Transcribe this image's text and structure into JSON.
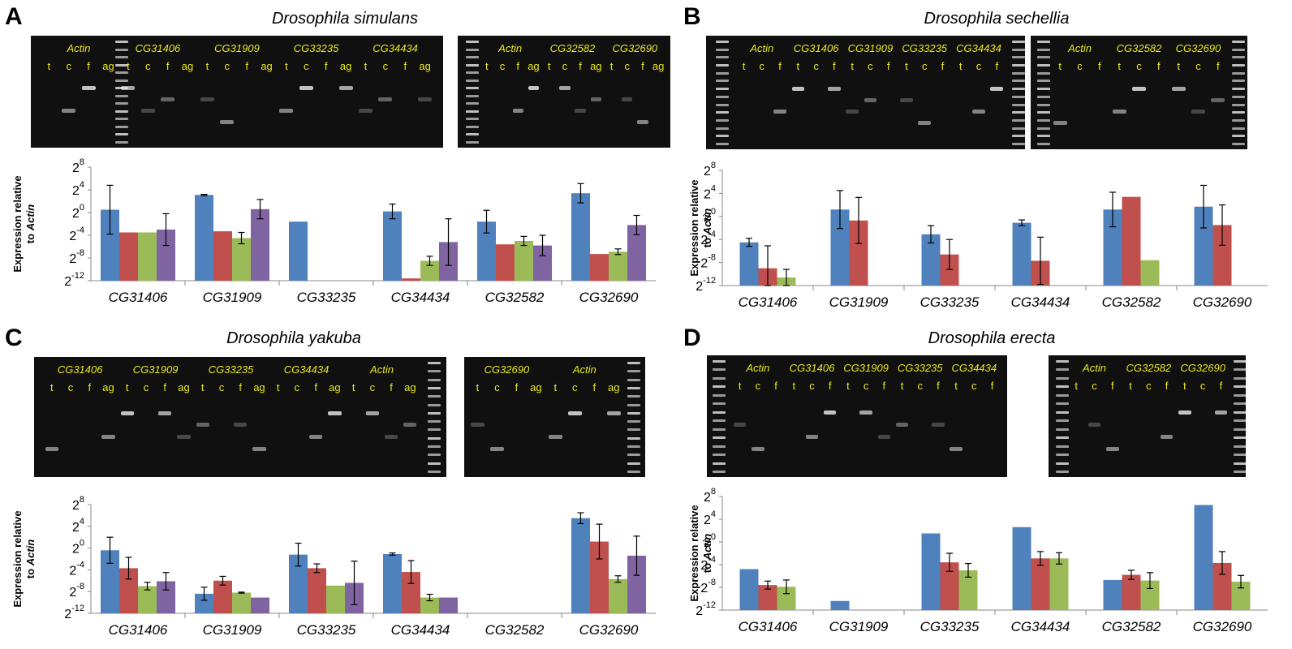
{
  "colors": {
    "t": "#4f81bd",
    "c": "#c0504d",
    "f": "#9bbb59",
    "ag": "#8064a2",
    "lane_label": "#e8e81a"
  },
  "panels": [
    {
      "letter": "A",
      "title": "Drosophila simulans",
      "gels": [
        {
          "groups": [
            {
              "label": "Actin",
              "lanes": [
                "t",
                "c",
                "f",
                "ag"
              ]
            },
            {
              "label": "CG31406",
              "lanes": [
                "t",
                "c",
                "f",
                "ag"
              ]
            },
            {
              "label": "CG31909",
              "lanes": [
                "t",
                "c",
                "f",
                "ag"
              ]
            },
            {
              "label": "CG33235",
              "lanes": [
                "t",
                "c",
                "f",
                "ag"
              ]
            },
            {
              "label": "CG34434",
              "lanes": [
                "t",
                "c",
                "f",
                "ag"
              ]
            }
          ]
        },
        {
          "groups": [
            {
              "label": "Actin",
              "lanes": [
                "t",
                "c",
                "f",
                "ag"
              ]
            },
            {
              "label": "CG32582",
              "lanes": [
                "t",
                "c",
                "f",
                "ag"
              ]
            },
            {
              "label": "CG32690",
              "lanes": [
                "t",
                "c",
                "f",
                "ag"
              ]
            }
          ]
        }
      ],
      "chart_data": {
        "type": "bar",
        "ylabel": [
          "Expression relative",
          "to Actin"
        ],
        "ylim_exp": [
          -12,
          8
        ],
        "ytick_exp": [
          -12,
          -8,
          -4,
          0,
          4,
          8
        ],
        "tick_base": "2",
        "categories": [
          "CG31406",
          "CG31909",
          "CG33235",
          "CG34434",
          "CG32582",
          "CG32690"
        ],
        "series": [
          {
            "key": "t",
            "values": [
              0.5,
              3.1,
              -1.6,
              0.2,
              -1.6,
              3.4
            ],
            "err": [
              4.3,
              0.1,
              null,
              1.3,
              2.0,
              1.7
            ]
          },
          {
            "key": "c",
            "values": [
              -3.5,
              -3.3,
              null,
              -11.6,
              -5.6,
              -7.3
            ],
            "err": [
              null,
              null,
              null,
              null,
              null,
              null
            ]
          },
          {
            "key": "f",
            "values": [
              -3.5,
              -4.5,
              null,
              -8.5,
              -5.0,
              -6.9
            ],
            "err": [
              null,
              1.0,
              null,
              0.8,
              0.8,
              0.5
            ]
          },
          {
            "key": "ag",
            "values": [
              -3.0,
              0.6,
              null,
              -5.2,
              -5.8,
              -2.2
            ],
            "err": [
              2.8,
              1.7,
              null,
              4.1,
              1.8,
              1.7
            ]
          }
        ]
      }
    },
    {
      "letter": "B",
      "title": "Drosophila sechellia",
      "gels": [
        {
          "groups": [
            {
              "label": "Actin",
              "lanes": [
                "t",
                "c",
                "f"
              ]
            },
            {
              "label": "CG31406",
              "lanes": [
                "t",
                "c",
                "f"
              ]
            },
            {
              "label": "CG31909",
              "lanes": [
                "t",
                "c",
                "f"
              ]
            },
            {
              "label": "CG33235",
              "lanes": [
                "t",
                "c",
                "f"
              ]
            },
            {
              "label": "CG34434",
              "lanes": [
                "t",
                "c",
                "f"
              ]
            }
          ]
        },
        {
          "groups": [
            {
              "label": "Actin",
              "lanes": [
                "t",
                "c",
                "f"
              ]
            },
            {
              "label": "CG32582",
              "lanes": [
                "t",
                "c",
                "f"
              ]
            },
            {
              "label": "CG32690",
              "lanes": [
                "t",
                "c",
                "f"
              ]
            }
          ]
        }
      ],
      "chart_data": {
        "type": "bar",
        "ylabel": [
          "Expression relative",
          "to Actin"
        ],
        "ylim_exp": [
          -12,
          8
        ],
        "ytick_exp": [
          -12,
          -8,
          -4,
          0,
          4,
          8
        ],
        "tick_base": "2",
        "categories": [
          "CG31406",
          "CG31909",
          "CG33235",
          "CG34434",
          "CG32582",
          "CG32690"
        ],
        "series": [
          {
            "key": "t",
            "values": [
              -4.5,
              1.2,
              -3.1,
              -1.1,
              1.2,
              1.7
            ],
            "err": [
              0.7,
              3.3,
              1.5,
              0.5,
              3.0,
              3.7
            ]
          },
          {
            "key": "c",
            "values": [
              -9.0,
              -0.7,
              -6.6,
              -7.7,
              3.4,
              -1.5
            ],
            "err": [
              3.9,
              4.0,
              2.6,
              4.1,
              null,
              3.5
            ]
          },
          {
            "key": "f",
            "values": [
              -10.6,
              null,
              null,
              null,
              -7.6,
              null
            ],
            "err": [
              1.4,
              null,
              null,
              null,
              null,
              null
            ]
          }
        ]
      }
    },
    {
      "letter": "C",
      "title": "Drosophila yakuba",
      "gels": [
        {
          "groups": [
            {
              "label": "CG31406",
              "lanes": [
                "t",
                "c",
                "f",
                "ag"
              ]
            },
            {
              "label": "CG31909",
              "lanes": [
                "t",
                "c",
                "f",
                "ag"
              ]
            },
            {
              "label": "CG33235",
              "lanes": [
                "t",
                "c",
                "f",
                "ag"
              ]
            },
            {
              "label": "CG34434",
              "lanes": [
                "t",
                "c",
                "f",
                "ag"
              ]
            },
            {
              "label": "Actin",
              "lanes": [
                "t",
                "c",
                "f",
                "ag"
              ]
            }
          ]
        },
        {
          "groups": [
            {
              "label": "CG32690",
              "lanes": [
                "t",
                "c",
                "f",
                "ag"
              ]
            },
            {
              "label": "Actin",
              "lanes": [
                "t",
                "c",
                "f",
                "ag"
              ]
            }
          ]
        }
      ],
      "chart_data": {
        "type": "bar",
        "ylabel": [
          "Expression relative",
          "to Actin"
        ],
        "ylim_exp": [
          -12,
          8
        ],
        "ytick_exp": [
          -12,
          -8,
          -4,
          0,
          4,
          8
        ],
        "tick_base": "2",
        "categories": [
          "CG31406",
          "CG31909",
          "CG33235",
          "CG34434",
          "CG32582",
          "CG32690"
        ],
        "series": [
          {
            "key": "t",
            "values": [
              -0.4,
              -8.4,
              -1.2,
              -1.1,
              null,
              5.5
            ],
            "err": [
              2.4,
              1.2,
              2.1,
              0.2,
              null,
              1.0
            ]
          },
          {
            "key": "c",
            "values": [
              -3.7,
              -6.0,
              -3.7,
              -4.4,
              null,
              1.2
            ],
            "err": [
              2.0,
              0.8,
              0.8,
              2.1,
              null,
              3.2
            ]
          },
          {
            "key": "f",
            "values": [
              -7.0,
              -8.2,
              -6.9,
              -9.1,
              null,
              -5.7
            ],
            "err": [
              0.7,
              0.1,
              null,
              0.6,
              null,
              0.6
            ]
          },
          {
            "key": "ag",
            "values": [
              -6.1,
              -9.1,
              -6.4,
              -9.1,
              null,
              -1.4
            ],
            "err": [
              1.6,
              null,
              4.0,
              null,
              null,
              3.6
            ]
          }
        ]
      }
    },
    {
      "letter": "D",
      "title": "Drosophila erecta",
      "gels": [
        {
          "groups": [
            {
              "label": "Actin",
              "lanes": [
                "t",
                "c",
                "f"
              ]
            },
            {
              "label": "CG31406",
              "lanes": [
                "t",
                "c",
                "f"
              ]
            },
            {
              "label": "CG31909",
              "lanes": [
                "t",
                "c",
                "f"
              ]
            },
            {
              "label": "CG33235",
              "lanes": [
                "t",
                "c",
                "f"
              ]
            },
            {
              "label": "CG34434",
              "lanes": [
                "t",
                "c",
                "f"
              ]
            }
          ]
        },
        {
          "groups": [
            {
              "label": "Actin",
              "lanes": [
                "t",
                "c",
                "f"
              ]
            },
            {
              "label": "CG32582",
              "lanes": [
                "t",
                "c",
                "f"
              ]
            },
            {
              "label": "CG32690",
              "lanes": [
                "t",
                "c",
                "f"
              ]
            }
          ]
        }
      ],
      "chart_data": {
        "type": "bar",
        "ylabel": [
          "Expression relative",
          "to Actin"
        ],
        "ylim_exp": [
          -12,
          8
        ],
        "ytick_exp": [
          -12,
          -8,
          -4,
          0,
          4,
          8
        ],
        "tick_base": "2",
        "categories": [
          "CG31406",
          "CG31909",
          "CG33235",
          "CG34434",
          "CG32582",
          "CG32690"
        ],
        "series": [
          {
            "key": "t",
            "values": [
              -4.8,
              -10.4,
              1.5,
              2.6,
              -6.7,
              6.5
            ],
            "err": [
              null,
              null,
              null,
              null,
              null,
              null
            ]
          },
          {
            "key": "c",
            "values": [
              -7.6,
              null,
              -3.6,
              -2.9,
              -5.8,
              -3.7
            ],
            "err": [
              0.7,
              null,
              1.6,
              1.2,
              0.8,
              2.0
            ]
          },
          {
            "key": "f",
            "values": [
              -7.9,
              null,
              -5.0,
              -2.9,
              -6.8,
              -7.0
            ],
            "err": [
              1.2,
              null,
              1.2,
              1.0,
              1.4,
              1.1
            ]
          }
        ]
      }
    }
  ]
}
